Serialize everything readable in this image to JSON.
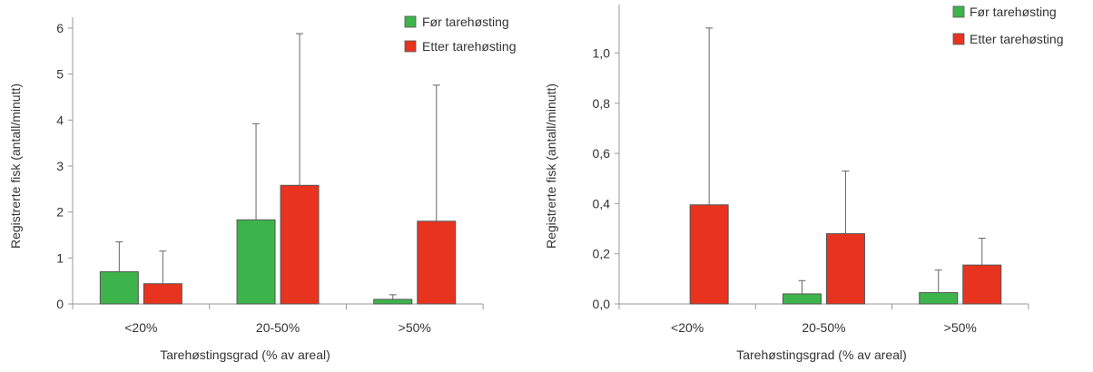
{
  "chart_data": [
    {
      "type": "bar",
      "categories": [
        "<20%",
        "20-50%",
        ">50%"
      ],
      "series": [
        {
          "name": "Før tarehøsting",
          "values": [
            0.7,
            1.83,
            0.1
          ],
          "error_upper": [
            1.35,
            3.92,
            0.2
          ]
        },
        {
          "name": "Etter tarehøsting",
          "values": [
            0.44,
            2.58,
            1.8
          ],
          "error_upper": [
            1.15,
            5.88,
            4.76
          ]
        }
      ],
      "title": "",
      "xlabel": "Tarehøstingsgrad  (% av areal)",
      "ylabel": "Registrerte fisk  (antall/minutt)",
      "ylim": [
        0,
        6
      ],
      "yticks": [
        "0",
        "1",
        "2",
        "3",
        "4",
        "5",
        "6"
      ],
      "legend": "top-right",
      "grid": false,
      "colors": {
        "series": [
          "#3cb44b",
          "#e8331f"
        ],
        "axis": "#999999",
        "text": "#333333"
      }
    },
    {
      "type": "bar",
      "categories": [
        "<20%",
        "20-50%",
        ">50%"
      ],
      "series": [
        {
          "name": "Før tarehøsting",
          "values": [
            0.0,
            0.04,
            0.045
          ],
          "error_upper": [
            0.0,
            0.093,
            0.135
          ]
        },
        {
          "name": "Etter tarehøsting",
          "values": [
            0.395,
            0.28,
            0.155
          ],
          "error_upper": [
            1.1,
            0.53,
            0.262
          ]
        }
      ],
      "title": "",
      "xlabel": "Tarehøstingsgrad  (% av areal)",
      "ylabel": "Registrerte fisk  (antall/minutt)",
      "ylim": [
        0,
        1.15
      ],
      "yticks": [
        "0,0",
        "0,2",
        "0,4",
        "0,6",
        "0,8",
        "1,0"
      ],
      "legend": "top-right",
      "grid": false,
      "colors": {
        "series": [
          "#3cb44b",
          "#e8331f"
        ],
        "axis": "#999999",
        "text": "#333333"
      }
    }
  ]
}
